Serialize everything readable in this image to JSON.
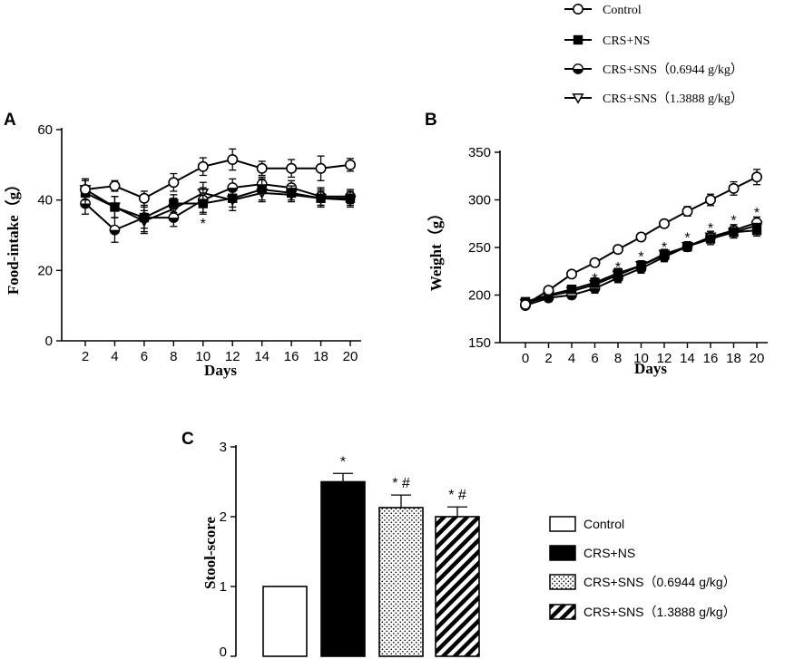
{
  "colors": {
    "ink": "#000000",
    "paper": "#ffffff"
  },
  "legend_top": {
    "items": [
      {
        "label": "Control",
        "marker": "circle-open"
      },
      {
        "label": "CRS+NS",
        "marker": "square-filled"
      },
      {
        "label": "CRS+SNS（0.6944 g/kg）",
        "marker": "circle-half"
      },
      {
        "label": "CRS+SNS（1.3888 g/kg）",
        "marker": "triangle-down"
      }
    ]
  },
  "chart_data": [
    {
      "panel": "A",
      "type": "line",
      "xlabel": "Days",
      "ylabel": "Food-intake（g）",
      "x": [
        2,
        4,
        6,
        8,
        10,
        12,
        14,
        16,
        18,
        20
      ],
      "xticks": [
        "2",
        "4",
        "6",
        "8",
        "10",
        "12",
        "14",
        "16",
        "18",
        "20"
      ],
      "ylim": [
        0,
        60
      ],
      "yticks": [
        "0",
        "20",
        "40",
        "60"
      ],
      "series": [
        {
          "name": "Control",
          "marker": "circle-open",
          "values": [
            43,
            44,
            40.5,
            45,
            49.5,
            51.5,
            49,
            49,
            49,
            50
          ],
          "err": [
            3,
            1.5,
            2,
            2.5,
            2.5,
            3,
            2,
            2.5,
            3.5,
            1.8
          ]
        },
        {
          "name": "CRS+NS",
          "marker": "square-filled",
          "values": [
            42,
            38,
            35,
            39,
            39,
            40.5,
            43,
            42,
            40.5,
            40.5
          ],
          "err": [
            3.5,
            3,
            3,
            2.5,
            3,
            2.5,
            3,
            2,
            2.5,
            2
          ]
        },
        {
          "name": "CRS+SNS（0.6944 g/kg）",
          "marker": "circle-half",
          "values": [
            39,
            31.5,
            35,
            35,
            40,
            43.5,
            44.5,
            43.5,
            41,
            41
          ],
          "err": [
            3,
            3.5,
            4.5,
            2.5,
            3.5,
            2.5,
            2,
            2,
            2.5,
            2
          ]
        },
        {
          "name": "CRS+SNS（1.3888 g/kg）",
          "marker": "triangle-down",
          "values": [
            43,
            38,
            34,
            37.5,
            42,
            40,
            42,
            41.5,
            40.5,
            40
          ],
          "err": [
            3,
            3,
            3,
            3,
            3,
            3,
            2.5,
            2,
            2,
            2
          ]
        }
      ],
      "annotations": [
        {
          "x": 10,
          "y": 34.5,
          "text": "*"
        }
      ]
    },
    {
      "panel": "B",
      "type": "line",
      "xlabel": "Days",
      "ylabel": "Weight（g）",
      "x": [
        0,
        2,
        4,
        6,
        8,
        10,
        12,
        14,
        16,
        18,
        20
      ],
      "xticks": [
        "0",
        "2",
        "4",
        "6",
        "8",
        "10",
        "12",
        "14",
        "16",
        "18",
        "20"
      ],
      "ylim": [
        150,
        350
      ],
      "yticks": [
        "150",
        "200",
        "250",
        "300",
        "350"
      ],
      "series": [
        {
          "name": "Control",
          "marker": "circle-open",
          "values": [
            190,
            205,
            222,
            234,
            248,
            261,
            275,
            288,
            300,
            312,
            324
          ],
          "err": [
            3,
            3,
            3,
            4,
            4,
            4,
            4,
            5,
            6,
            7,
            8
          ]
        },
        {
          "name": "CRS+NS",
          "marker": "square-filled",
          "values": [
            193,
            200,
            206,
            213,
            223,
            231,
            242,
            251,
            259,
            266,
            268
          ],
          "err": [
            3,
            4,
            4,
            5,
            5,
            5,
            5,
            5,
            6,
            6,
            6
          ]
        },
        {
          "name": "CRS+SNS（0.6944 g/kg）",
          "marker": "circle-half",
          "values": [
            189,
            197,
            200,
            207,
            218,
            228,
            240,
            251,
            261,
            268,
            276
          ],
          "err": [
            3,
            4,
            4,
            5,
            5,
            5,
            5,
            5,
            6,
            6,
            6
          ]
        },
        {
          "name": "CRS+SNS（1.3888 g/kg）",
          "marker": "triangle-down",
          "values": [
            191,
            199,
            204,
            211,
            221,
            231,
            243,
            251,
            261,
            266,
            273
          ],
          "err": [
            3,
            4,
            4,
            5,
            5,
            5,
            5,
            5,
            6,
            6,
            6
          ]
        }
      ],
      "annotations": [
        {
          "x": 6,
          "y": 222,
          "text": "*"
        },
        {
          "x": 8,
          "y": 234,
          "text": "*"
        },
        {
          "x": 10,
          "y": 245,
          "text": "*"
        },
        {
          "x": 12,
          "y": 255,
          "text": "*"
        },
        {
          "x": 14,
          "y": 265,
          "text": "*"
        },
        {
          "x": 16,
          "y": 275,
          "text": "*"
        },
        {
          "x": 18,
          "y": 283,
          "text": "*"
        },
        {
          "x": 20,
          "y": 291,
          "text": "*"
        }
      ]
    },
    {
      "panel": "C",
      "type": "bar",
      "xlabel": "",
      "ylabel": "Stool-score",
      "categories": [
        "Control",
        "CRS+NS",
        "CRS+SNS（0.6944 g/kg）",
        "CRS+SNS（1.3888 g/kg）"
      ],
      "values": [
        1.0,
        2.5,
        2.13,
        2.0
      ],
      "err": [
        0,
        0.12,
        0.18,
        0.14
      ],
      "fills": [
        "open",
        "solid",
        "dotted",
        "hatched"
      ],
      "sig": [
        "",
        "*",
        "* #",
        "* #"
      ],
      "ylim": [
        0,
        3
      ],
      "yticks": [
        "0",
        "1",
        "2",
        "3"
      ],
      "legend": [
        "Control",
        "CRS+NS",
        "CRS+SNS（0.6944 g/kg）",
        "CRS+SNS（1.3888 g/kg）"
      ]
    }
  ]
}
